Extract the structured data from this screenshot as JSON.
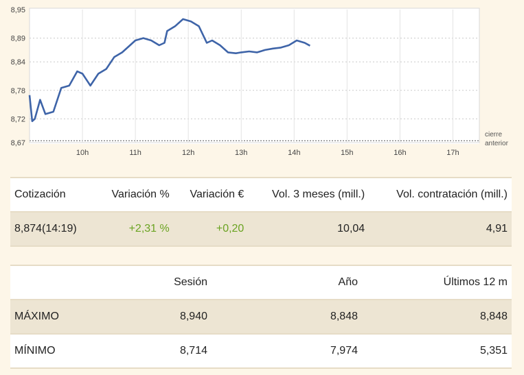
{
  "chart_data": {
    "type": "line",
    "series": [
      {
        "x": [
          9.0,
          9.05,
          9.1,
          9.2,
          9.3,
          9.45,
          9.6,
          9.75,
          9.9,
          10.0,
          10.15,
          10.3,
          10.45,
          10.6,
          10.75,
          10.9,
          11.0,
          11.15,
          11.3,
          11.45,
          11.55,
          11.6,
          11.75,
          11.9,
          12.05,
          12.2,
          12.35,
          12.45,
          12.6,
          12.75,
          12.9,
          13.0,
          13.15,
          13.3,
          13.45,
          13.6,
          13.75,
          13.9,
          14.05,
          14.2,
          14.3
        ],
        "y": [
          8.77,
          8.715,
          8.72,
          8.76,
          8.73,
          8.735,
          8.785,
          8.79,
          8.82,
          8.815,
          8.79,
          8.815,
          8.825,
          8.85,
          8.86,
          8.875,
          8.885,
          8.89,
          8.885,
          8.875,
          8.88,
          8.905,
          8.915,
          8.93,
          8.925,
          8.915,
          8.88,
          8.885,
          8.875,
          8.86,
          8.858,
          8.86,
          8.862,
          8.86,
          8.865,
          8.868,
          8.87,
          8.875,
          8.885,
          8.88,
          8.874
        ]
      }
    ],
    "xticks": [
      "10h",
      "11h",
      "12h",
      "13h",
      "14h",
      "15h",
      "16h",
      "17h"
    ],
    "yticks": [
      "8,95",
      "8,89",
      "8,84",
      "8,78",
      "8,72",
      "8,67"
    ],
    "ylim": [
      8.67,
      8.95
    ],
    "xlim": [
      9.0,
      17.5
    ],
    "reference_label_1": "cierre",
    "reference_label_2": "anterior",
    "reference_value": 8.674
  },
  "quote": {
    "headers": [
      "Cotización",
      "Variación %",
      "Variación €",
      "Vol. 3 meses (mill.)",
      "Vol. contratación (mill.)"
    ],
    "values": [
      "8,874(14:19)",
      "+2,31 %",
      "+0,20",
      "10,04",
      "4,91"
    ]
  },
  "range": {
    "headers": [
      "",
      "Sesión",
      "Año",
      "Últimos 12 m"
    ],
    "rows": [
      {
        "label": "MÁXIMO",
        "values": [
          "8,940",
          "8,848",
          "8,848"
        ]
      },
      {
        "label": "MÍNIMO",
        "values": [
          "8,714",
          "7,974",
          "5,351"
        ]
      }
    ]
  },
  "colors": {
    "line": "#3e64a8",
    "positive": "#6aa321",
    "background": "#fdf6e8"
  }
}
